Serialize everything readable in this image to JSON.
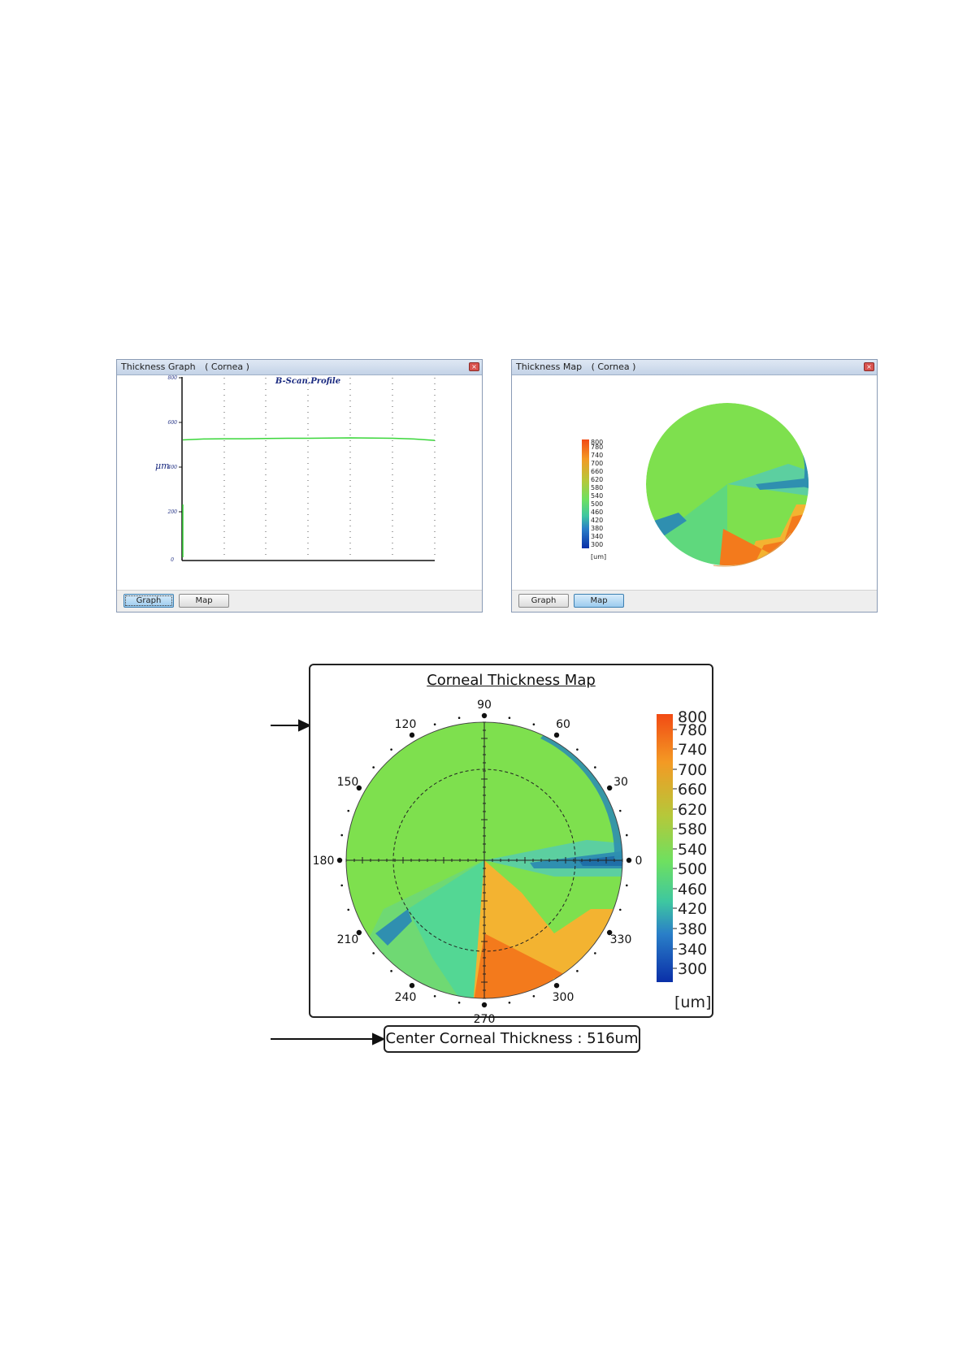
{
  "graph_window": {
    "title": "Thickness Graph",
    "subject": "( Cornea )",
    "close_glyph": "×",
    "plot_title": "B-Scan.Profile",
    "y_label": "μm",
    "y_ticks": [
      "800",
      "600",
      "400",
      "200",
      "0"
    ],
    "tabs": [
      {
        "label": "Graph",
        "active": true
      },
      {
        "label": "Map",
        "active": false
      }
    ]
  },
  "map_window": {
    "title": "Thickness Map",
    "subject": "( Cornea )",
    "close_glyph": "×",
    "scale_labels": [
      "800",
      "780",
      "740",
      "700",
      "660",
      "620",
      "580",
      "540",
      "500",
      "460",
      "420",
      "380",
      "340",
      "300"
    ],
    "scale_unit": "[um]",
    "tabs": [
      {
        "label": "Graph",
        "active": false
      },
      {
        "label": "Map",
        "active": true
      }
    ]
  },
  "figure": {
    "title": "Corneal Thickness Map",
    "angle_labels": [
      "0",
      "30",
      "60",
      "90",
      "120",
      "150",
      "180",
      "210",
      "240",
      "270",
      "300",
      "330"
    ],
    "scale_labels": [
      "800",
      "780",
      "740",
      "700",
      "660",
      "620",
      "580",
      "540",
      "500",
      "460",
      "420",
      "380",
      "340",
      "300"
    ],
    "scale_unit": "[um]",
    "center_thickness": "Center Corneal Thickness : 516um"
  },
  "colors": {
    "profile_line": "#3ad63a",
    "map_green": "#7ee04e",
    "map_orange": "#f37a1c",
    "map_blue": "#2f8fb0"
  },
  "chart_data": {
    "type": "line",
    "title": "B-Scan.Profile",
    "ylabel": "μm",
    "ylim": [
      0,
      800
    ],
    "series": [
      {
        "values": [
          528,
          532,
          533,
          533,
          534,
          535,
          535,
          536,
          537,
          536,
          535,
          532,
          526
        ]
      }
    ]
  }
}
